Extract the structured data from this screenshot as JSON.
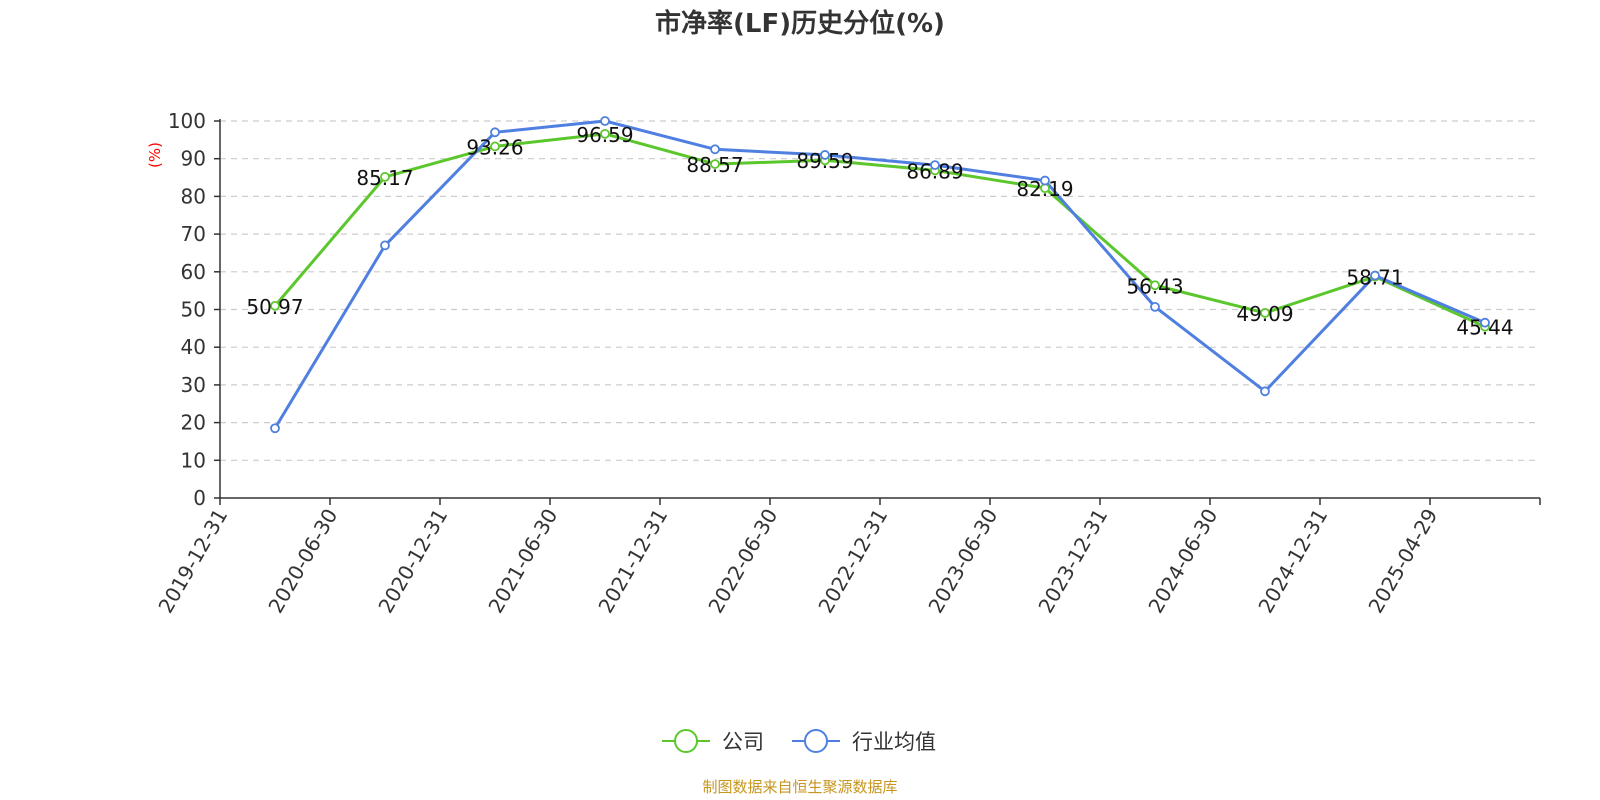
{
  "chart_data": {
    "type": "line",
    "title": "市净率(LF)历史分位(%)",
    "ylabel": "(%)",
    "xlabel": "",
    "ylim": [
      0,
      100
    ],
    "yticks": [
      0,
      10,
      20,
      30,
      40,
      50,
      60,
      70,
      80,
      90,
      100
    ],
    "grid": true,
    "legend_position": "bottom",
    "categories": [
      "2019-12-31",
      "2020-06-30",
      "2020-12-31",
      "2021-06-30",
      "2021-12-31",
      "2022-06-30",
      "2022-12-31",
      "2023-06-30",
      "2023-12-31",
      "2024-06-30",
      "2024-12-31",
      "2025-04-29"
    ],
    "series": [
      {
        "name": "公司",
        "color": "#5cc72c",
        "values": [
          50.97,
          85.17,
          93.26,
          96.59,
          88.57,
          89.59,
          86.89,
          82.19,
          56.43,
          49.09,
          58.71,
          45.44
        ],
        "labels": [
          "50.97",
          "85.17",
          "93.26",
          "96.59",
          "88.57",
          "89.59",
          "86.89",
          "82.19",
          "56.43",
          "49.09",
          "58.71",
          "45.44"
        ]
      },
      {
        "name": "行业均值",
        "color": "#4f7fe0",
        "values": [
          18.5,
          67.0,
          97.0,
          100.0,
          92.5,
          91.0,
          88.3,
          84.2,
          50.7,
          28.3,
          59.0,
          46.5
        ]
      }
    ],
    "source": "制图数据来自恒生聚源数据库"
  }
}
